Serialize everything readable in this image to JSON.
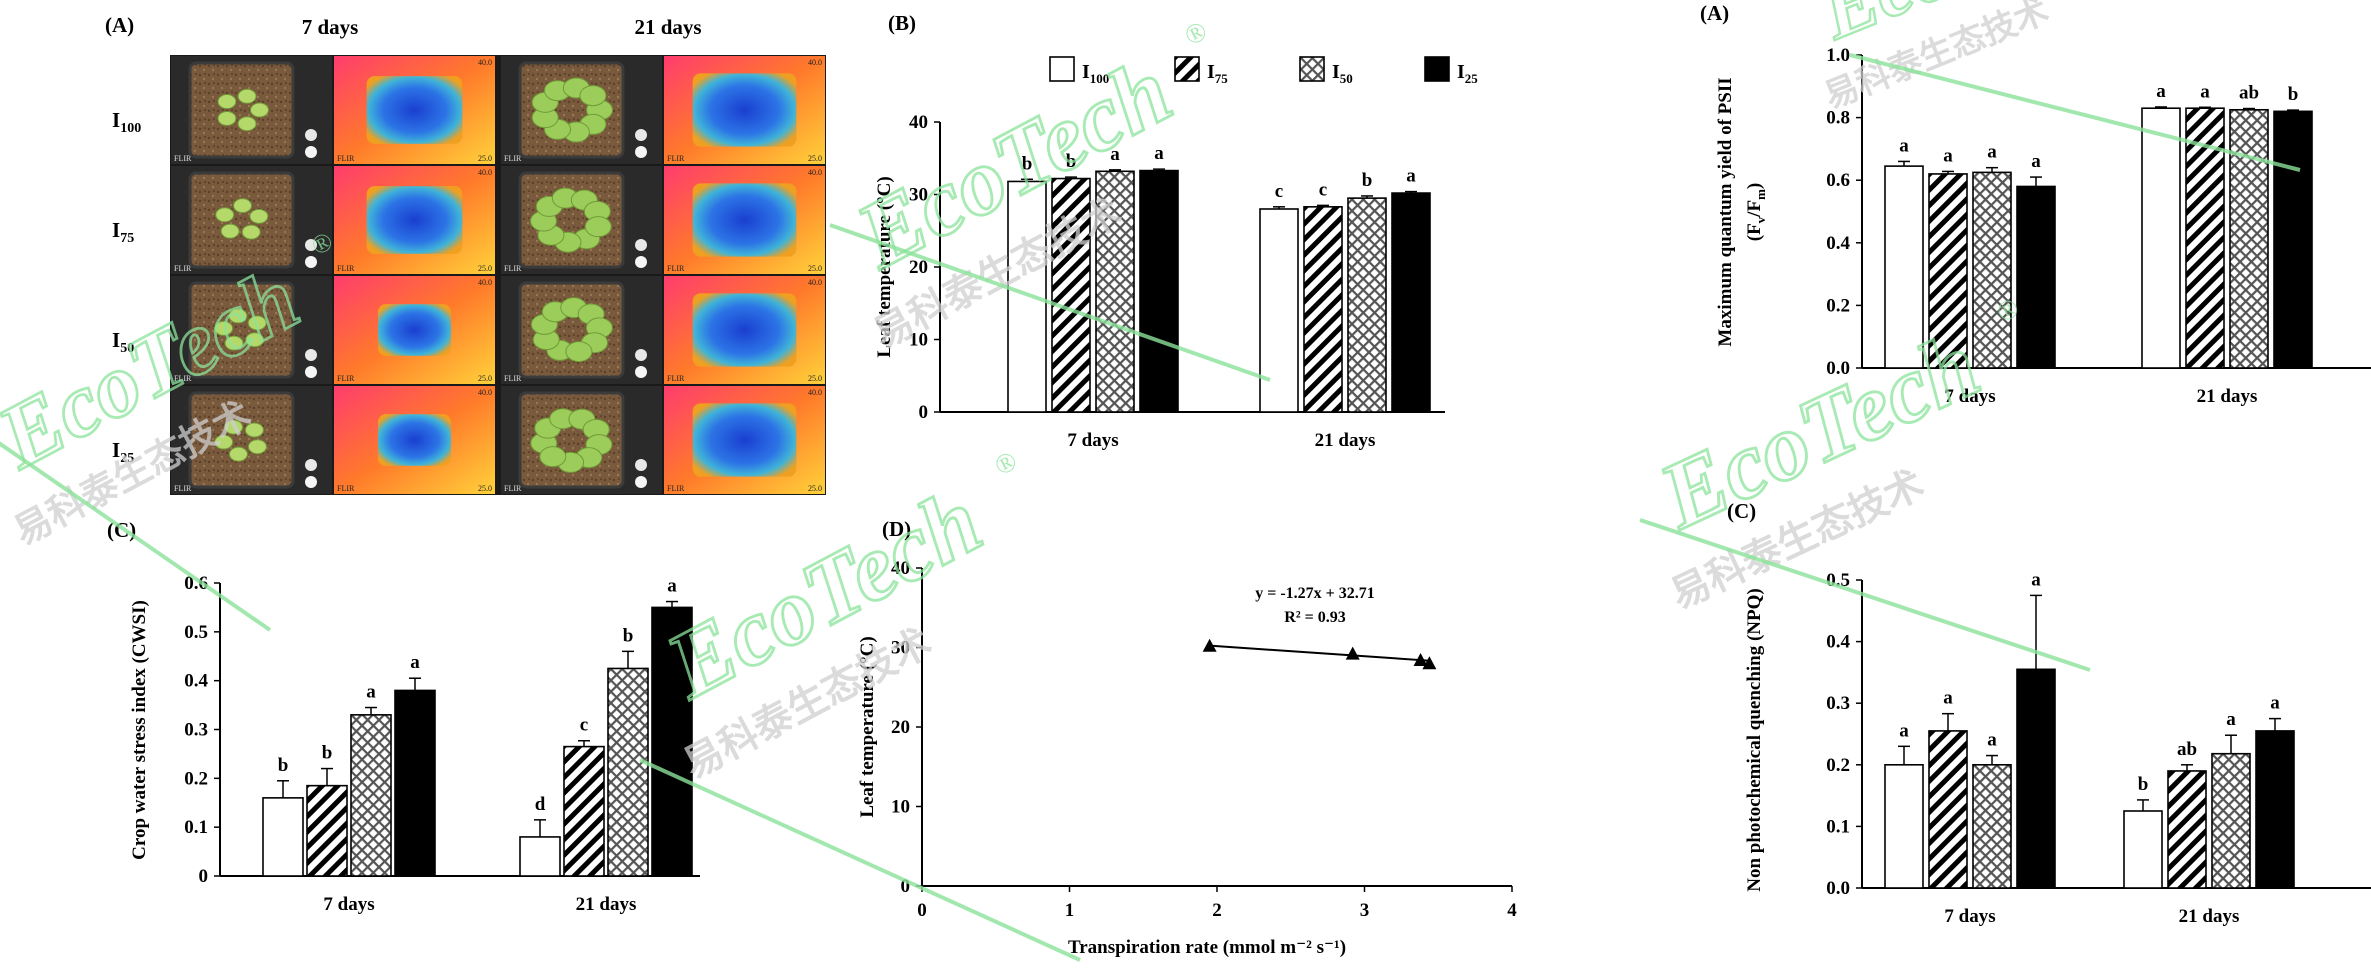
{
  "watermark": {
    "brand": "EcoTech",
    "registered": "®",
    "chinese": "易科泰生态技术",
    "color": "#8be39a"
  },
  "patterns": {
    "I100": "white",
    "I75": "diagonal-stripes",
    "I50": "crosshatch",
    "I25": "black"
  },
  "photo_panel": {
    "label": "(A)",
    "column_headers": [
      "7 days",
      "21 days"
    ],
    "row_labels": [
      {
        "main": "I",
        "sub": "100"
      },
      {
        "main": "I",
        "sub": "75"
      },
      {
        "main": "I",
        "sub": "50"
      },
      {
        "main": "I",
        "sub": "25"
      }
    ],
    "camera_brand": "FLIR",
    "thermal_scale_max": "40.0",
    "thermal_scale_min": "25.0"
  },
  "chart_data": [
    {
      "id": "leaf-temperature",
      "label": "(B)",
      "type": "bar",
      "ylabel": "Leaf temperature (°C)",
      "ylim": [
        0,
        40
      ],
      "yticks": [
        "0",
        "10",
        "20",
        "30",
        "40"
      ],
      "categories": [
        "7 days",
        "21 days"
      ],
      "legend": [
        {
          "main": "I",
          "sub": "100",
          "pattern": "white"
        },
        {
          "main": "I",
          "sub": "75",
          "pattern": "diagonal-stripes"
        },
        {
          "main": "I",
          "sub": "50",
          "pattern": "crosshatch"
        },
        {
          "main": "I",
          "sub": "25",
          "pattern": "black"
        }
      ],
      "series": [
        {
          "name": "I100",
          "values": [
            31.8,
            28.0
          ],
          "errors": [
            0.3,
            0.3
          ],
          "letters": [
            "b",
            "c"
          ]
        },
        {
          "name": "I75",
          "values": [
            32.2,
            28.3
          ],
          "errors": [
            0.2,
            0.2
          ],
          "letters": [
            "b",
            "c"
          ]
        },
        {
          "name": "I50",
          "values": [
            33.2,
            29.5
          ],
          "errors": [
            0.2,
            0.3
          ],
          "letters": [
            "a",
            "b"
          ]
        },
        {
          "name": "I25",
          "values": [
            33.3,
            30.2
          ],
          "errors": [
            0.2,
            0.2
          ],
          "letters": [
            "a",
            "a"
          ]
        }
      ]
    },
    {
      "id": "cwsi",
      "label": "(C)",
      "type": "bar",
      "ylabel": "Crop water stress index (CWSI)",
      "ylim": [
        0,
        0.6
      ],
      "yticks": [
        "0",
        "0.1",
        "0.2",
        "0.3",
        "0.4",
        "0.5",
        "0.6"
      ],
      "categories": [
        "7 days",
        "21 days"
      ],
      "series": [
        {
          "name": "I100",
          "values": [
            0.16,
            0.08
          ],
          "errors": [
            0.035,
            0.035
          ],
          "letters": [
            "b",
            "d"
          ]
        },
        {
          "name": "I75",
          "values": [
            0.185,
            0.265
          ],
          "errors": [
            0.035,
            0.012
          ],
          "letters": [
            "b",
            "c"
          ]
        },
        {
          "name": "I50",
          "values": [
            0.33,
            0.425
          ],
          "errors": [
            0.015,
            0.035
          ],
          "letters": [
            "a",
            "b"
          ]
        },
        {
          "name": "I25",
          "values": [
            0.38,
            0.55
          ],
          "errors": [
            0.025,
            0.012
          ],
          "letters": [
            "a",
            "a"
          ]
        }
      ]
    },
    {
      "id": "transpiration-regression",
      "label": "(D)",
      "type": "scatter",
      "xlabel": "Transpiration rate (mmol m⁻² s⁻¹)",
      "ylabel": "Leaf temperature (°C)",
      "xlim": [
        0,
        4
      ],
      "ylim": [
        0,
        40
      ],
      "xticks": [
        "0",
        "1",
        "2",
        "3",
        "4"
      ],
      "yticks": [
        "0",
        "10",
        "20",
        "30",
        "40"
      ],
      "points": [
        {
          "x": 1.95,
          "y": 30.1
        },
        {
          "x": 2.92,
          "y": 29.1
        },
        {
          "x": 3.38,
          "y": 28.3
        },
        {
          "x": 3.44,
          "y": 27.9
        }
      ],
      "trendline": {
        "slope": -1.27,
        "intercept": 32.71,
        "x_range": [
          1.95,
          3.44
        ]
      },
      "equation": "y = -1.27x + 32.71",
      "r_squared": "R² = 0.93"
    },
    {
      "id": "fv-fm",
      "label": "(A)",
      "type": "bar",
      "ylabel_line1": "Maximum quantum yield of PSII",
      "ylabel_line2_main": "(F",
      "ylabel_line2_sub1": "v",
      "ylabel_line2_mid": "/F",
      "ylabel_line2_sub2": "m",
      "ylabel_line2_end": ")",
      "ylim": [
        0,
        1.0
      ],
      "yticks": [
        "0.0",
        "0.2",
        "0.4",
        "0.6",
        "0.8",
        "1.0"
      ],
      "categories": [
        "7 days",
        "21 days"
      ],
      "series": [
        {
          "name": "I100",
          "values": [
            0.645,
            0.83
          ],
          "errors": [
            0.015,
            0.004
          ],
          "letters": [
            "a",
            "a"
          ]
        },
        {
          "name": "I75",
          "values": [
            0.62,
            0.83
          ],
          "errors": [
            0.008,
            0.003
          ],
          "letters": [
            "a",
            "a"
          ]
        },
        {
          "name": "I50",
          "values": [
            0.625,
            0.825
          ],
          "errors": [
            0.015,
            0.004
          ],
          "letters": [
            "a",
            "ab"
          ]
        },
        {
          "name": "I25",
          "values": [
            0.58,
            0.82
          ],
          "errors": [
            0.03,
            0.004
          ],
          "letters": [
            "a",
            "b"
          ]
        }
      ]
    },
    {
      "id": "npq",
      "label": "(C)",
      "type": "bar",
      "ylabel": "Non photochemical quenching (NPQ)",
      "ylim": [
        0,
        0.5
      ],
      "yticks": [
        "0.0",
        "0.1",
        "0.2",
        "0.3",
        "0.4",
        "0.5"
      ],
      "categories": [
        "7 days",
        "21 days"
      ],
      "series": [
        {
          "name": "I100",
          "values": [
            0.2,
            0.125
          ],
          "errors": [
            0.03,
            0.018
          ],
          "letters": [
            "a",
            "b"
          ]
        },
        {
          "name": "I75",
          "values": [
            0.255,
            0.19
          ],
          "errors": [
            0.028,
            0.01
          ],
          "letters": [
            "a",
            "ab"
          ]
        },
        {
          "name": "I50",
          "values": [
            0.2,
            0.218
          ],
          "errors": [
            0.015,
            0.03
          ],
          "letters": [
            "a",
            "a"
          ]
        },
        {
          "name": "I25",
          "values": [
            0.355,
            0.255
          ],
          "errors": [
            0.12,
            0.02
          ],
          "letters": [
            "a",
            "a"
          ]
        }
      ]
    }
  ]
}
